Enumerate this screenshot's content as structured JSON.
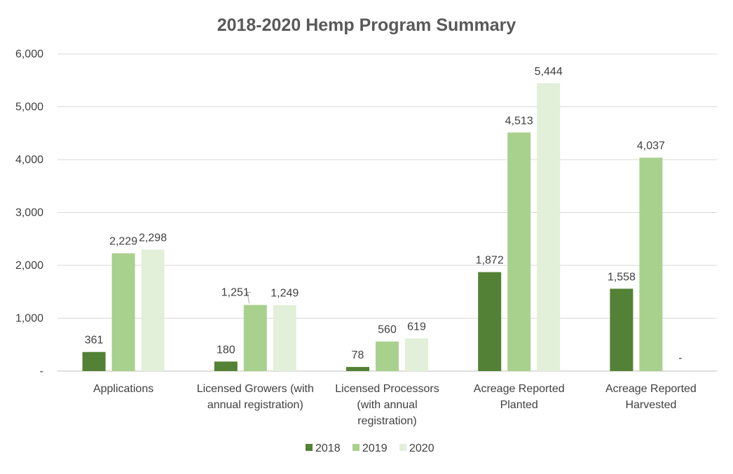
{
  "chart_data": {
    "type": "bar",
    "title": "2018-2020 Hemp Program Summary",
    "xlabel": "",
    "ylabel": "",
    "ylim": [
      0,
      6000
    ],
    "yticks": [
      0,
      1000,
      2000,
      3000,
      4000,
      5000,
      6000
    ],
    "ytick_labels": [
      "-",
      "1,000",
      "2,000",
      "3,000",
      "4,000",
      "5,000",
      "6,000"
    ],
    "grid": true,
    "legend_position": "bottom",
    "categories": [
      [
        "Applications"
      ],
      [
        "Licensed Growers (with",
        "annual registration)"
      ],
      [
        "Licensed Processors",
        "(with annual",
        "registration)"
      ],
      [
        "Acreage Reported",
        "Planted"
      ],
      [
        "Acreage Reported",
        "Harvested"
      ]
    ],
    "series": [
      {
        "name": "2018",
        "color": "#538135",
        "values": [
          361,
          180,
          78,
          1872,
          1558
        ],
        "labels": [
          "361",
          "180",
          "78",
          "1,872",
          "1,558"
        ]
      },
      {
        "name": "2019",
        "color": "#a9d18e",
        "values": [
          2229,
          1251,
          560,
          4513,
          4037
        ],
        "labels": [
          "2,229",
          "1,251",
          "560",
          "4,513",
          "4,037"
        ]
      },
      {
        "name": "2020",
        "color": "#e2efd9",
        "values": [
          2298,
          1249,
          619,
          5444,
          0
        ],
        "labels": [
          "2,298",
          "1,249",
          "619",
          "5,444",
          "-"
        ]
      }
    ]
  }
}
